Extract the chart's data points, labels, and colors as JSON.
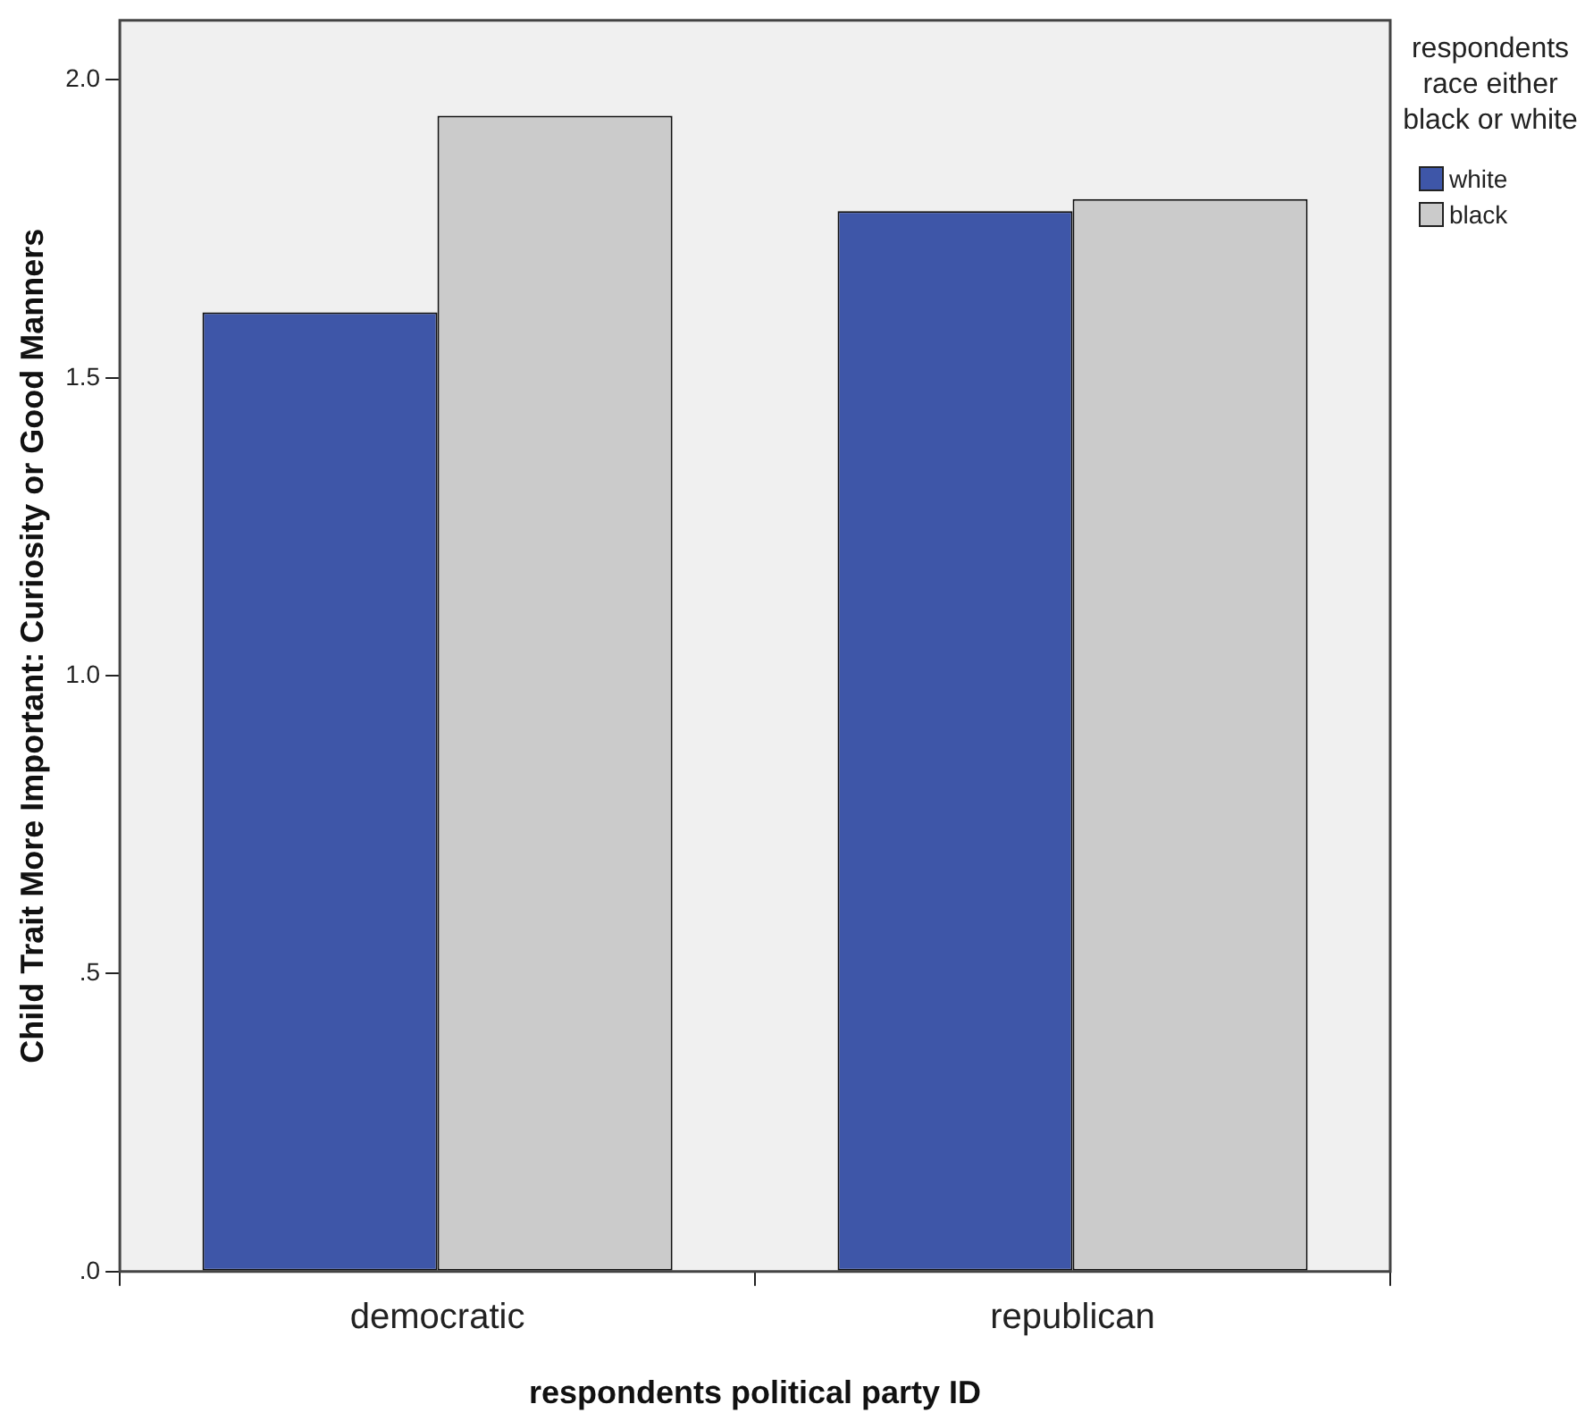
{
  "chart_data": {
    "type": "bar",
    "xlabel": "respondents political party ID",
    "ylabel": "Child Trait More Important: Curiosity or Good Manners",
    "legend_title": "respondents race either black or white",
    "categories": [
      "democratic",
      "republican"
    ],
    "series": [
      {
        "name": "white",
        "color": "#3e56a8",
        "values": [
          1.61,
          1.78
        ]
      },
      {
        "name": "black",
        "color": "#cbcbcb",
        "values": [
          1.94,
          1.8
        ]
      }
    ],
    "ylim": [
      0,
      2.1
    ],
    "yticks": [
      {
        "value": 0,
        "label": ".0"
      },
      {
        "value": 0.5,
        "label": ".5"
      },
      {
        "value": 1,
        "label": "1.0"
      },
      {
        "value": 1.5,
        "label": "1.5"
      },
      {
        "value": 2,
        "label": "2.0"
      }
    ],
    "grid": false,
    "legend": "right"
  }
}
